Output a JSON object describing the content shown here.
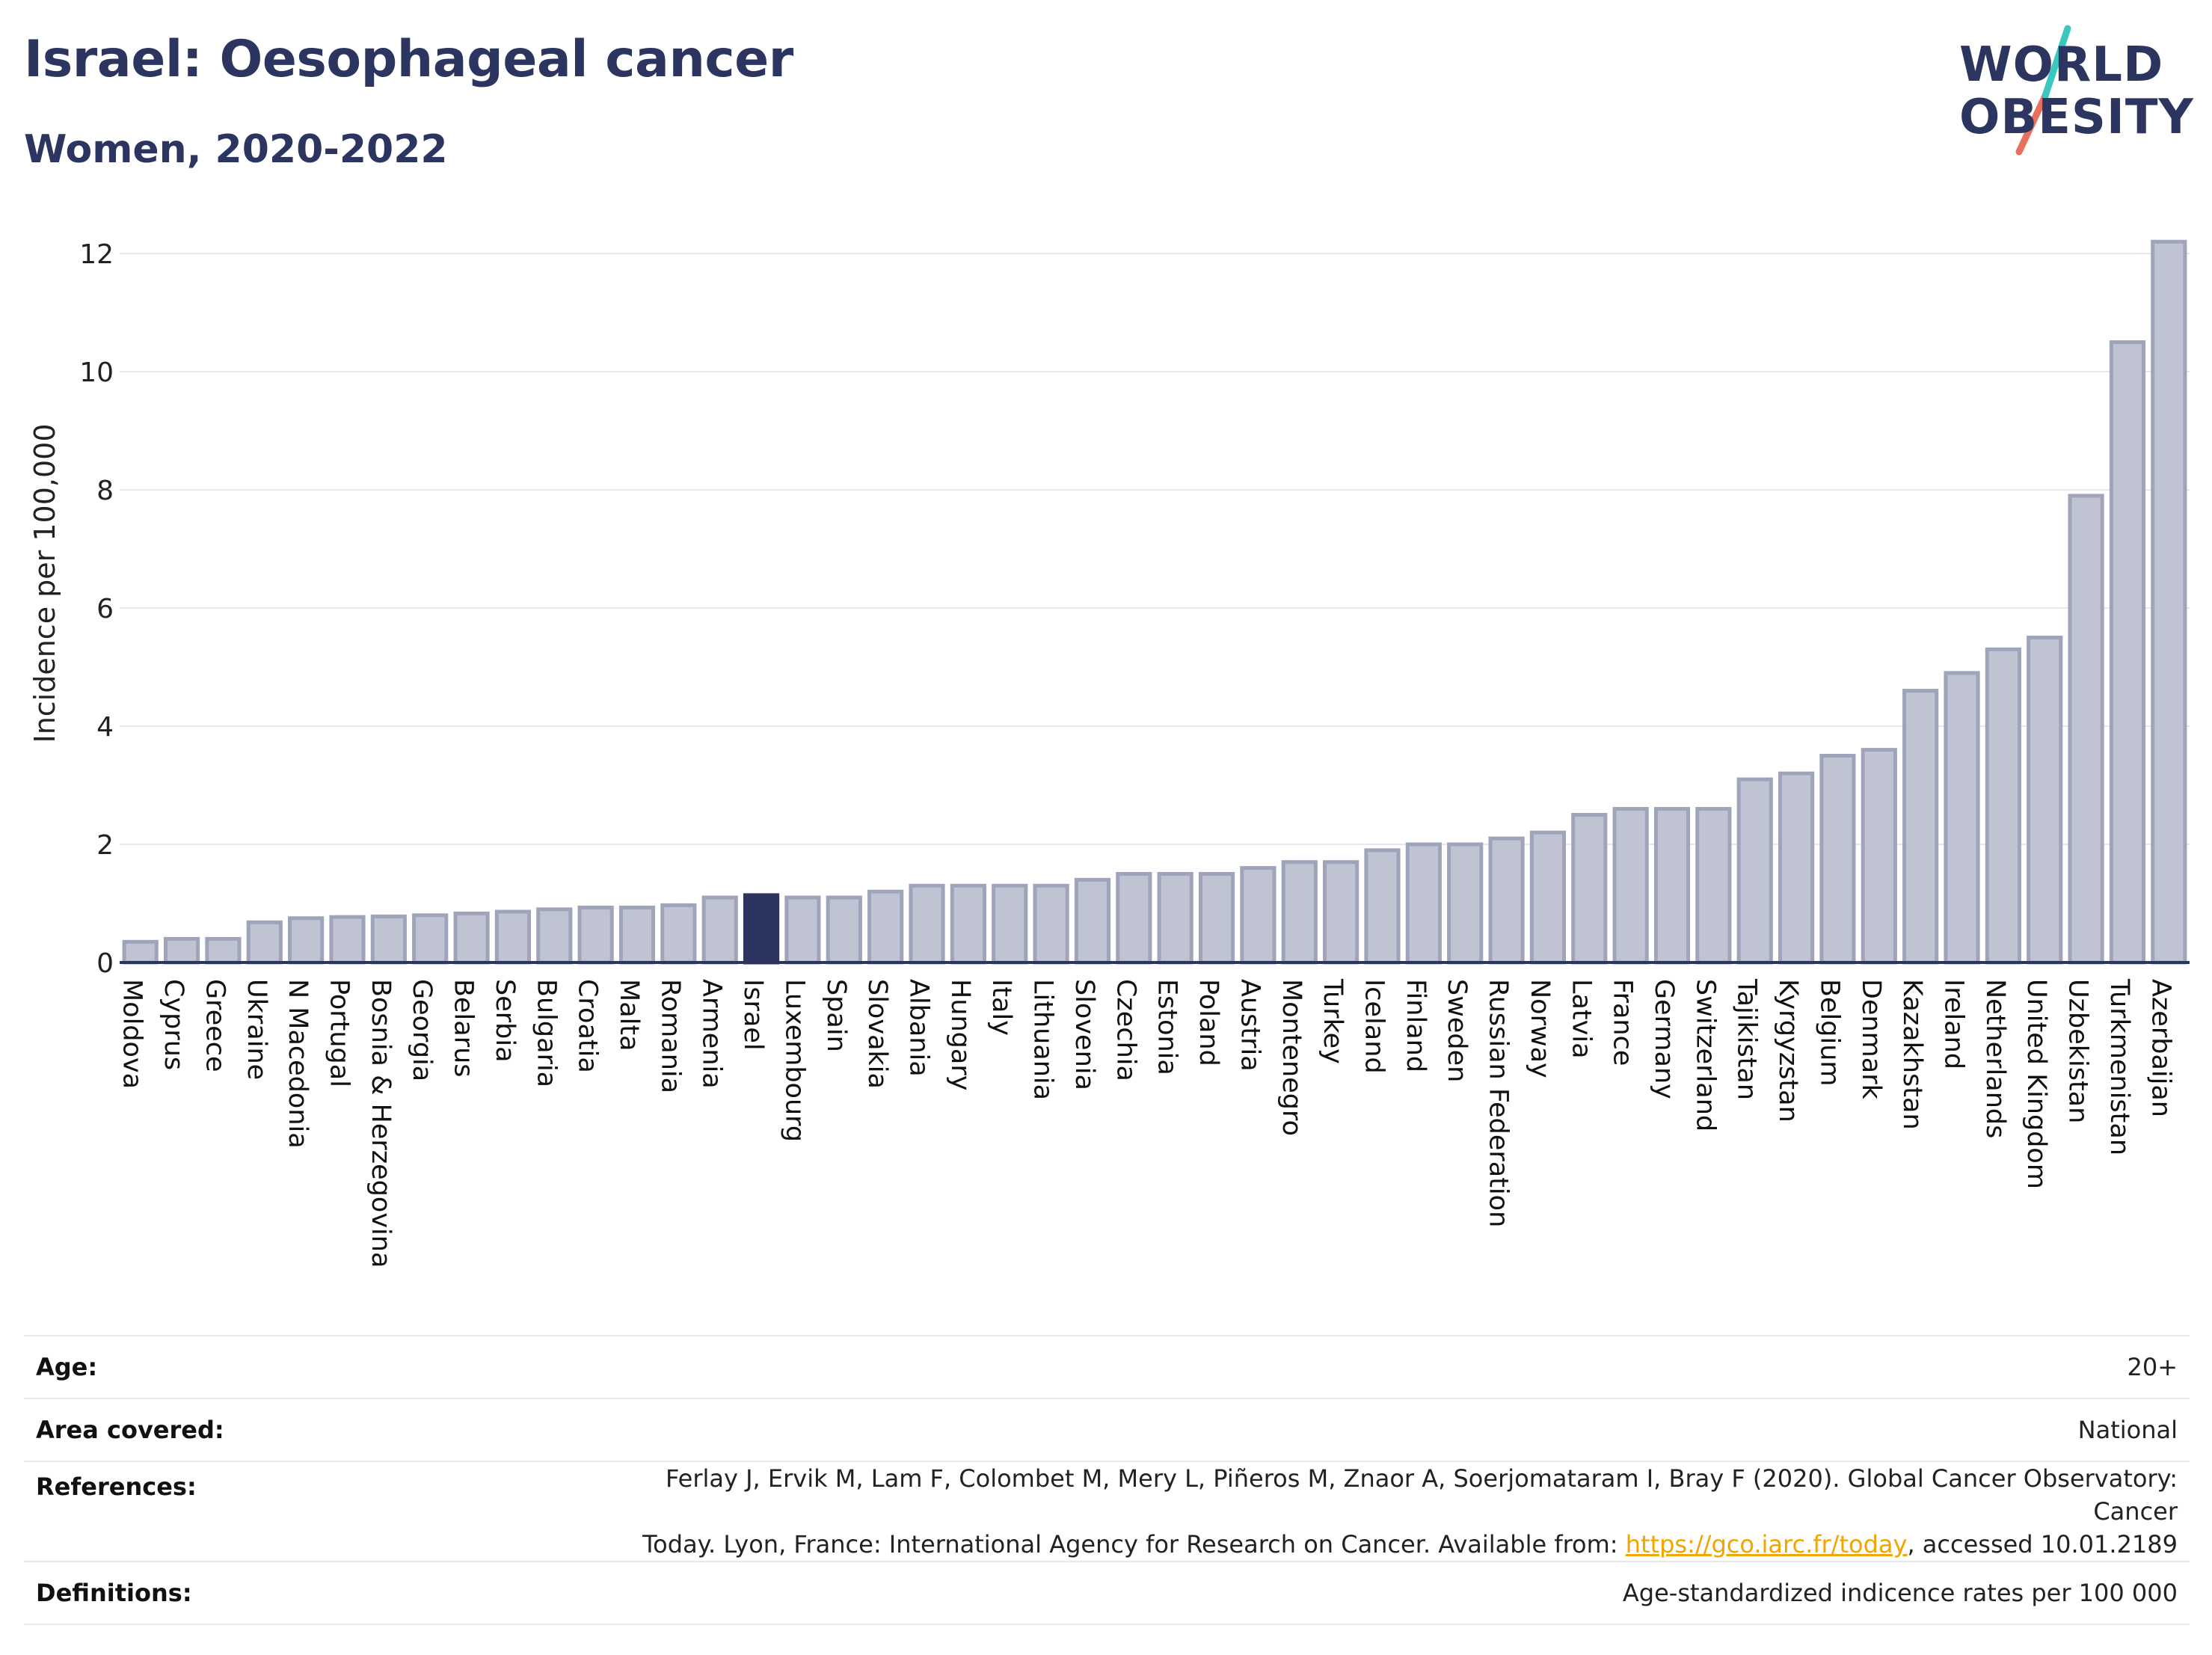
{
  "header": {
    "title": "Israel: Oesophageal cancer",
    "subtitle": "Women, 2020-2022"
  },
  "logo": {
    "line1": "WORLD",
    "line2": "OBESITY",
    "colors": {
      "text": "#2b3560",
      "slash_top": "#3cc6c0",
      "slash_bottom": "#e8705f"
    }
  },
  "chart_data": {
    "type": "bar",
    "title": "",
    "xlabel": "",
    "ylabel": "Incidence per 100,000",
    "ylim": [
      0,
      12.3
    ],
    "yticks": [
      0,
      2,
      4,
      6,
      8,
      10,
      12
    ],
    "grid": true,
    "highlight": "Israel",
    "colors": {
      "bar": "#c0c4d2",
      "bar_stroke": "#9ea4b9",
      "highlight": "#2b3560",
      "grid": "#e6e6ec",
      "axis": "#2b3560"
    },
    "categories": [
      "Moldova",
      "Cyprus",
      "Greece",
      "Ukraine",
      "N Macedonia",
      "Portugal",
      "Bosnia & Herzegovina",
      "Georgia",
      "Belarus",
      "Serbia",
      "Bulgaria",
      "Croatia",
      "Malta",
      "Romania",
      "Armenia",
      "Israel",
      "Luxembourg",
      "Spain",
      "Slovakia",
      "Albania",
      "Hungary",
      "Italy",
      "Lithuania",
      "Slovenia",
      "Czechia",
      "Estonia",
      "Poland",
      "Austria",
      "Montenegro",
      "Turkey",
      "Iceland",
      "Finland",
      "Sweden",
      "Russian Federation",
      "Norway",
      "Latvia",
      "France",
      "Germany",
      "Switzerland",
      "Tajikistan",
      "Kyrgyzstan",
      "Belgium",
      "Denmark",
      "Kazakhstan",
      "Ireland",
      "Netherlands",
      "United Kingdom",
      "Uzbekistan",
      "Turkmenistan",
      "Azerbaijan"
    ],
    "values": [
      0.35,
      0.4,
      0.4,
      0.68,
      0.75,
      0.77,
      0.78,
      0.8,
      0.83,
      0.86,
      0.9,
      0.93,
      0.93,
      0.97,
      1.1,
      1.14,
      1.1,
      1.1,
      1.2,
      1.3,
      1.3,
      1.3,
      1.3,
      1.4,
      1.5,
      1.5,
      1.5,
      1.6,
      1.7,
      1.7,
      1.9,
      2.0,
      2.0,
      2.1,
      2.2,
      2.5,
      2.6,
      2.6,
      2.6,
      3.1,
      3.2,
      3.5,
      3.6,
      4.6,
      4.9,
      5.3,
      5.5,
      7.9,
      10.5,
      12.2
    ]
  },
  "meta": {
    "rows": [
      {
        "label": "Age:",
        "value": "20+"
      },
      {
        "label": "Area covered:",
        "value": "National"
      },
      {
        "label": "References:",
        "value_line1": "Ferlay J, Ervik M, Lam F, Colombet M, Mery L, Piñeros M, Znaor A, Soerjomataram I, Bray F (2020). Global Cancer Observatory: Cancer",
        "value_line2_pre": "Today. Lyon, France: International Agency for Research on Cancer. Available from: ",
        "value_link": "https://gco.iarc.fr/today",
        "value_line2_post": ", accessed 10.01.2189"
      },
      {
        "label": "Definitions:",
        "value": "Age-standardized indicence rates per 100 000"
      }
    ]
  }
}
